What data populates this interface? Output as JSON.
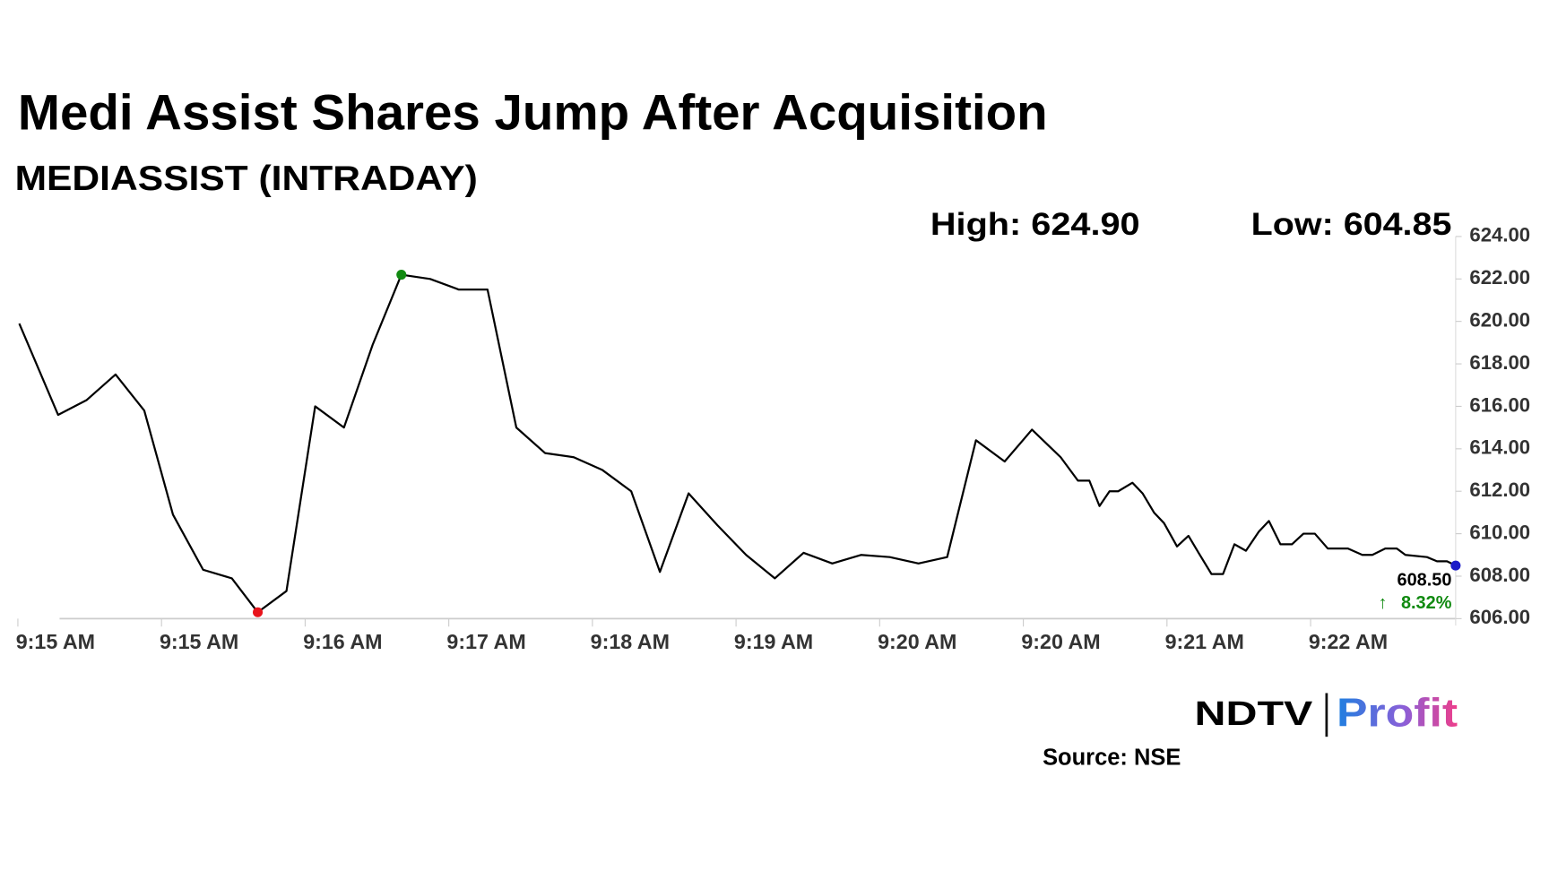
{
  "chart_data": {
    "type": "line",
    "title": "Medi Assist Shares Jump After Acquisition",
    "subtitle": "MEDIASSIST (INTRADAY)",
    "annotations": {
      "high": "High: 624.90",
      "low": "Low: 604.85",
      "end_value": "608.50",
      "change": "8.32%"
    },
    "source": "Source: NSE",
    "logo": {
      "left": "NDTV",
      "right": "Profit"
    },
    "color": "#000000",
    "x": [
      0.01,
      0.28,
      0.48,
      0.68,
      0.88,
      1.08,
      1.29,
      1.49,
      1.67,
      1.87,
      2.07,
      2.27,
      2.47,
      2.67,
      2.87,
      3.07,
      3.27,
      3.47,
      3.67,
      3.87,
      4.07,
      4.27,
      4.47,
      4.67,
      4.87,
      5.07,
      5.27,
      5.47,
      5.67,
      5.87,
      6.07,
      6.27,
      6.47,
      6.67,
      6.87,
      7.06,
      7.26,
      7.38,
      7.46,
      7.53,
      7.6,
      7.66,
      7.76,
      7.83,
      7.91,
      7.98,
      8.07,
      8.15,
      8.22,
      8.31,
      8.39,
      8.47,
      8.55,
      8.64,
      8.71,
      8.79,
      8.87,
      8.95,
      9.03,
      9.12,
      9.26,
      9.36,
      9.43,
      9.52,
      9.6,
      9.66,
      9.81,
      9.88,
      9.95,
      10.01
    ],
    "values": [
      619.9,
      615.6,
      616.3,
      617.5,
      615.8,
      610.9,
      608.3,
      607.9,
      606.3,
      607.3,
      616.0,
      615.0,
      618.9,
      622.2,
      622.0,
      621.5,
      621.5,
      615.0,
      613.8,
      613.6,
      613.0,
      612.0,
      608.2,
      611.9,
      610.4,
      609.0,
      607.9,
      609.1,
      608.6,
      609.0,
      608.9,
      608.6,
      608.9,
      614.4,
      613.4,
      614.9,
      613.6,
      612.5,
      612.5,
      611.3,
      612.0,
      612.0,
      612.4,
      611.9,
      611.0,
      610.5,
      609.4,
      609.9,
      609.1,
      608.1,
      608.1,
      609.5,
      609.2,
      610.1,
      610.6,
      609.5,
      609.5,
      610.0,
      610.0,
      609.3,
      609.3,
      609.0,
      609.0,
      609.3,
      609.3,
      609.0,
      608.9,
      608.7,
      608.7,
      608.5
    ],
    "point_markers": [
      {
        "index": 8,
        "color": "#e8131b"
      },
      {
        "index": 13,
        "color": "#118a11"
      },
      {
        "index": 69,
        "color": "#1c1cc8"
      }
    ],
    "change_color": "#118a11",
    "xlim": [
      0,
      10.01
    ],
    "xticks": [
      {
        "value": 0,
        "label": "9:15 AM"
      },
      {
        "value": 1,
        "label": "9:15 AM"
      },
      {
        "value": 2,
        "label": "9:16 AM"
      },
      {
        "value": 3,
        "label": "9:17 AM"
      },
      {
        "value": 4,
        "label": "9:18 AM"
      },
      {
        "value": 5,
        "label": "9:19 AM"
      },
      {
        "value": 6,
        "label": "9:20 AM"
      },
      {
        "value": 7,
        "label": "9:20 AM"
      },
      {
        "value": 8,
        "label": "9:21 AM"
      },
      {
        "value": 9,
        "label": "9:22 AM"
      }
    ],
    "ylim": [
      606,
      624
    ],
    "yticks": [
      {
        "value": 606,
        "label": "606.00"
      },
      {
        "value": 608,
        "label": "608.00"
      },
      {
        "value": 610,
        "label": "610.00"
      },
      {
        "value": 612,
        "label": "612.00"
      },
      {
        "value": 614,
        "label": "614.00"
      },
      {
        "value": 616,
        "label": "616.00"
      },
      {
        "value": 618,
        "label": "618.00"
      },
      {
        "value": 620,
        "label": "620.00"
      },
      {
        "value": 622,
        "label": "622.00"
      },
      {
        "value": 624,
        "label": "624.00"
      }
    ],
    "grid": false
  }
}
